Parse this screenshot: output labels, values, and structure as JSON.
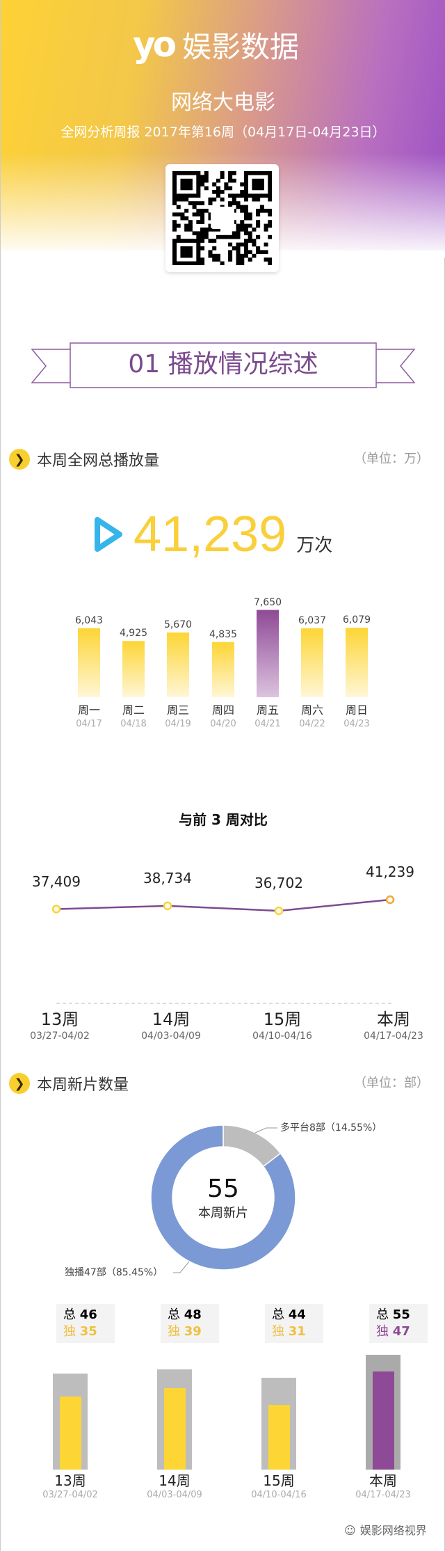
{
  "header": {
    "logo_mark": "yo",
    "logo_text": "娱影数据",
    "title": "网络大电影",
    "subtitle": "全网分析周报 2017年第16周（04月17日-04月23日）"
  },
  "banner": {
    "label": "01 播放情况综述"
  },
  "section_total": {
    "title": "本周全网总播放量",
    "unit": "（单位：万）",
    "total": "41,239",
    "total_unit": "万次",
    "icon": "play-icon"
  },
  "section_compare": {
    "title": "与前 3 周对比"
  },
  "section_new": {
    "title": "本周新片数量",
    "unit": "（单位：部）",
    "center_value": "55",
    "center_label": "本周新片",
    "label_multi": "多平台8部（14.55%）",
    "label_exclusive": "独播47部（85.45%）"
  },
  "colors": {
    "yellow": "#fdd535",
    "purple": "#8e4a96",
    "blue": "#7b99d4",
    "gray": "#bdbdbd"
  },
  "footer": {
    "icon": "wechat-icon",
    "text": "娱影网络视界"
  },
  "chart_data": [
    {
      "type": "bar",
      "categories": [
        "周一",
        "周二",
        "周三",
        "周四",
        "周五",
        "周六",
        "周日"
      ],
      "dates": [
        "04/17",
        "04/18",
        "04/19",
        "04/20",
        "04/21",
        "04/22",
        "04/23"
      ],
      "values": [
        6043,
        4925,
        5670,
        4835,
        7650,
        6037,
        6079
      ],
      "labels": [
        "6,043",
        "4,925",
        "5,670",
        "4,835",
        "7,650",
        "6,037",
        "6,079"
      ],
      "highlight": "周五"
    },
    {
      "type": "line",
      "title": "与前 3 周对比",
      "categories": [
        "13周",
        "14周",
        "15周",
        "本周"
      ],
      "dates": [
        "03/27-04/02",
        "04/03-04/09",
        "04/10-04/16",
        "04/17-04/23"
      ],
      "values": [
        37409,
        38734,
        36702,
        41239
      ],
      "labels": [
        "37,409",
        "38,734",
        "36,702",
        "41,239"
      ]
    },
    {
      "type": "pie",
      "donut": true,
      "slices": [
        {
          "name": "多平台",
          "value": 8,
          "percent": 14.55
        },
        {
          "name": "独播",
          "value": 47,
          "percent": 85.45
        }
      ]
    },
    {
      "type": "bar",
      "categories": [
        "13周",
        "14周",
        "15周",
        "本周"
      ],
      "dates": [
        "03/27-04/02",
        "04/03-04/09",
        "04/10-04/16",
        "04/17-04/23"
      ],
      "series": [
        {
          "name": "总",
          "values": [
            46,
            48,
            44,
            55
          ]
        },
        {
          "name": "独",
          "values": [
            35,
            39,
            31,
            47
          ]
        }
      ],
      "total_prefix": "总",
      "excl_prefix": "独"
    }
  ]
}
